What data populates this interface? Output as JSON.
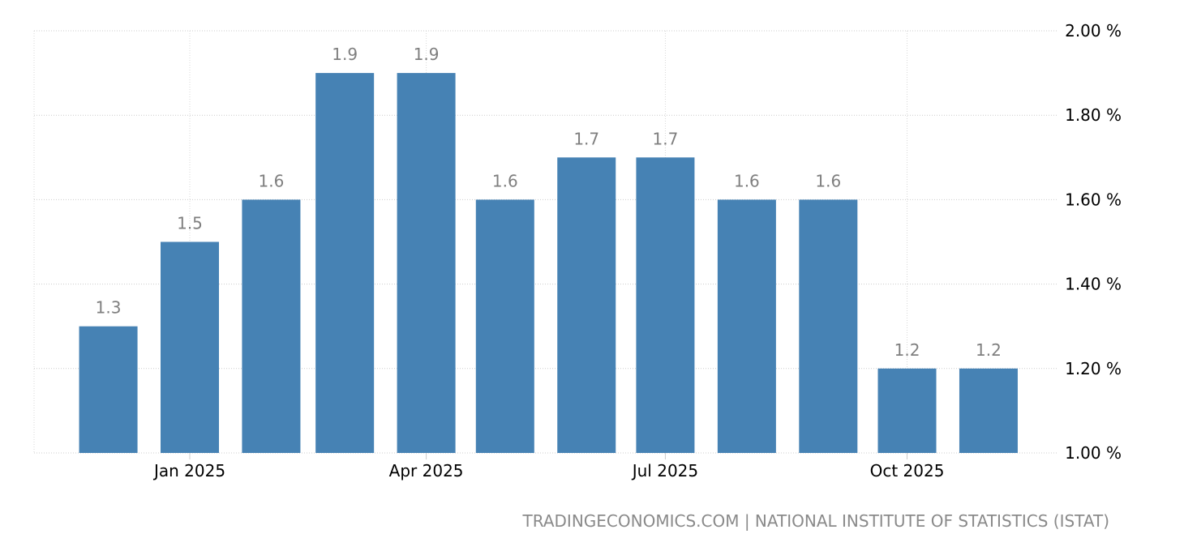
{
  "chart_data": {
    "type": "bar",
    "categories": [
      "Dec 2024",
      "Jan 2025",
      "Feb 2025",
      "Mar 2025",
      "Apr 2025",
      "May 2025",
      "Jun 2025",
      "Jul 2025",
      "Aug 2025",
      "Sep 2025",
      "Oct 2025",
      "Nov 2025"
    ],
    "dates": [
      "2024-12-01",
      "2025-01-01",
      "2025-02-01",
      "2025-03-01",
      "2025-04-01",
      "2025-05-01",
      "2025-06-01",
      "2025-07-01",
      "2025-08-01",
      "2025-09-01",
      "2025-10-01",
      "2025-11-01"
    ],
    "values": [
      1.3,
      1.5,
      1.6,
      1.9,
      1.9,
      1.6,
      1.7,
      1.7,
      1.6,
      1.6,
      1.2,
      1.2
    ],
    "value_labels": [
      "1.3",
      "1.5",
      "1.6",
      "1.9",
      "1.9",
      "1.6",
      "1.7",
      "1.7",
      "1.6",
      "1.6",
      "1.2",
      "1.2"
    ],
    "x_ticks": [
      {
        "date": "2025-01-01",
        "label": "Jan 2025"
      },
      {
        "date": "2025-04-01",
        "label": "Apr 2025"
      },
      {
        "date": "2025-07-01",
        "label": "Jul 2025"
      },
      {
        "date": "2025-10-01",
        "label": "Oct 2025"
      }
    ],
    "y_ticks": [
      1.0,
      1.2,
      1.4,
      1.6,
      1.8,
      2.0
    ],
    "y_tick_labels": [
      "1.00 %",
      "1.20 %",
      "1.40 %",
      "1.60 %",
      "1.80 %",
      "2.00 %"
    ],
    "ylim": [
      1.0,
      2.0
    ],
    "y_axis_position": "right",
    "grid": true,
    "bar_color": "#4682b4",
    "title": "",
    "xlabel": "",
    "ylabel": ""
  },
  "source": "TRADINGECONOMICS.COM | NATIONAL INSTITUTE OF STATISTICS (ISTAT)"
}
